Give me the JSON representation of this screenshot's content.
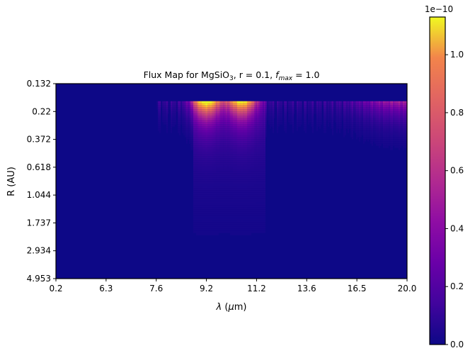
{
  "chart_data": {
    "type": "heatmap",
    "title_parts": {
      "prefix": "Flux Map for MgSiO",
      "sub": "3",
      "middle": ", r = 0.1, ",
      "f": "f",
      "fsub": "max",
      "suffix": " = 1.0"
    },
    "xlabel_parts": {
      "lambda": "λ",
      "open": " (",
      "mu": "μ",
      "rest": "m)"
    },
    "ylabel": "R (AU)",
    "x_ticks": [
      "0.2",
      "6.3",
      "7.6",
      "9.2",
      "11.2",
      "13.6",
      "16.5",
      "20.0"
    ],
    "y_ticks": [
      "0.132",
      "0.22",
      "0.372",
      "0.618",
      "1.044",
      "1.737",
      "2.934",
      "4.953"
    ],
    "colorbar": {
      "cmap": "plasma",
      "min": 0,
      "max": 1.13e-10,
      "ticks": [
        "0.0",
        "0.2",
        "0.4",
        "0.6",
        "0.8",
        "1.0"
      ],
      "tick_values": [
        0.0,
        0.2,
        0.4,
        0.6,
        0.8,
        1.0
      ],
      "exponent_label": "1e−10"
    },
    "peaks": [
      {
        "lambda_um": 9.2,
        "R_AU": 0.22,
        "flux_1e10": 1.1
      },
      {
        "lambda_um": 10.6,
        "R_AU": 0.22,
        "flux_1e10": 1.0
      },
      {
        "lambda_um": 19.5,
        "R_AU": 0.22,
        "flux_1e10": 0.35
      }
    ]
  }
}
